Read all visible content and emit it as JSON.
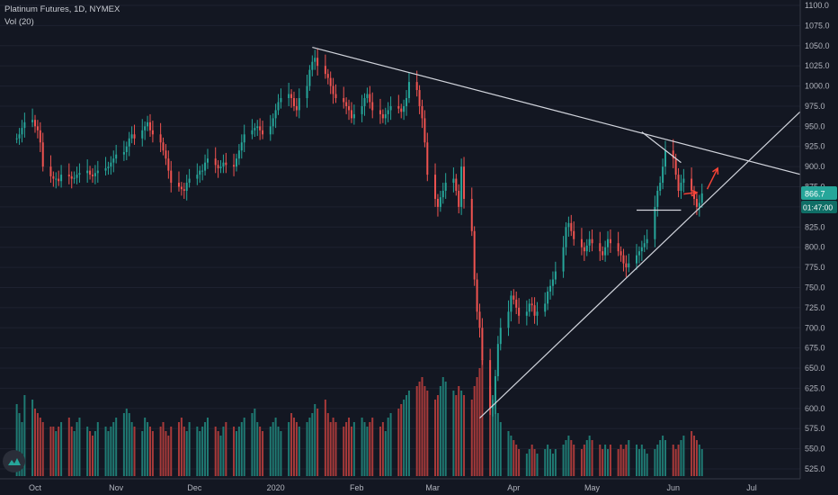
{
  "legend": {
    "symbol": "Platinum Futures, 1D, NYMEX",
    "volume": "Vol (20)"
  },
  "price_tag": {
    "value": "866.7",
    "countdown": "01:47:00"
  },
  "colors": {
    "background": "#131722",
    "up": "#26a69a",
    "down": "#ef5350",
    "up_volume": "#1f7a73",
    "down_volume": "#a83a3a",
    "trendline": "#d1d4dc",
    "arrow": "#f44336",
    "axis_text": "#b2b5be"
  },
  "icons": {
    "logo": "tradingview-logo-icon"
  },
  "chart_data": {
    "type": "candlestick",
    "title": "Platinum Futures, 1D, NYMEX",
    "y_ticks": [
      "525.0",
      "550.0",
      "575.0",
      "600.0",
      "625.0",
      "650.0",
      "675.0",
      "700.0",
      "725.0",
      "750.0",
      "775.0",
      "800.0",
      "825.0",
      "850.0",
      "875.0",
      "900.0",
      "925.0",
      "950.0",
      "975.0",
      "1000.0",
      "1025.0",
      "1050.0",
      "1075.0",
      "1100.0"
    ],
    "x_ticks": [
      "Oct",
      "Nov",
      "Dec",
      "2020",
      "Feb",
      "Mar",
      "Apr",
      "May",
      "Jun",
      "Jul"
    ],
    "ylim": [
      512,
      1100
    ],
    "start_date": "2019-09-24",
    "last_price": 866.7,
    "close_series": [
      935,
      940,
      948,
      955,
      958,
      950,
      945,
      930,
      900,
      888,
      885,
      885,
      882,
      890,
      888,
      885,
      886,
      890,
      892,
      895,
      890,
      888,
      892,
      895,
      898,
      900,
      905,
      910,
      915,
      918,
      925,
      935,
      940,
      935,
      945,
      950,
      955,
      945,
      940,
      930,
      920,
      910,
      895,
      880,
      875,
      872,
      870,
      880,
      885,
      890,
      895,
      895,
      905,
      910,
      902,
      898,
      900,
      905,
      902,
      900,
      910,
      920,
      930,
      940,
      945,
      948,
      950,
      945,
      940,
      950,
      960,
      970,
      980,
      985,
      990,
      985,
      975,
      970,
      985,
      1000,
      1020,
      1030,
      1035,
      1025,
      1015,
      1010,
      1000,
      990,
      985,
      980,
      975,
      970,
      960,
      965,
      975,
      985,
      990,
      980,
      970,
      965,
      960,
      965,
      970,
      975,
      972,
      968,
      975,
      985,
      1005,
      995,
      975,
      960,
      930,
      890,
      860,
      850,
      862,
      870,
      880,
      885,
      870,
      850,
      900,
      860,
      820,
      760,
      720,
      700,
      660,
      600,
      605,
      640,
      680,
      700,
      720,
      740,
      735,
      725,
      715,
      720,
      730,
      728,
      715,
      720,
      730,
      745,
      752,
      760,
      770,
      800,
      825,
      830,
      820,
      810,
      800,
      795,
      802,
      810,
      805,
      795,
      790,
      800,
      810,
      805,
      795,
      790,
      780,
      775,
      780,
      790,
      795,
      800,
      805,
      810,
      850,
      870,
      880,
      900,
      920,
      910,
      890,
      870,
      880,
      885,
      870,
      860,
      850,
      855,
      866.7
    ],
    "volume_series": [
      80,
      70,
      60,
      90,
      85,
      75,
      70,
      65,
      60,
      55,
      55,
      50,
      55,
      60,
      65,
      55,
      50,
      60,
      65,
      55,
      50,
      45,
      50,
      60,
      55,
      50,
      55,
      60,
      65,
      70,
      75,
      70,
      60,
      55,
      50,
      65,
      60,
      55,
      50,
      55,
      60,
      50,
      45,
      55,
      60,
      65,
      55,
      50,
      60,
      55,
      50,
      55,
      60,
      65,
      55,
      50,
      45,
      55,
      60,
      55,
      50,
      55,
      60,
      65,
      70,
      75,
      60,
      55,
      50,
      55,
      60,
      65,
      55,
      50,
      60,
      70,
      65,
      60,
      55,
      60,
      65,
      70,
      80,
      75,
      85,
      70,
      60,
      65,
      60,
      55,
      60,
      65,
      55,
      60,
      65,
      60,
      55,
      60,
      65,
      55,
      60,
      50,
      65,
      70,
      75,
      80,
      85,
      90,
      95,
      100,
      105,
      110,
      100,
      95,
      85,
      90,
      100,
      110,
      105,
      95,
      90,
      100,
      95,
      90,
      85,
      100,
      110,
      120,
      130,
      100,
      90,
      80,
      70,
      60,
      50,
      45,
      40,
      35,
      30,
      25,
      30,
      35,
      30,
      25,
      30,
      35,
      30,
      25,
      30,
      35,
      40,
      45,
      40,
      35,
      30,
      35,
      40,
      45,
      40,
      35,
      30,
      35,
      30,
      35,
      30,
      35,
      30,
      35,
      40,
      35,
      30,
      35,
      30,
      25,
      30,
      35,
      40,
      45,
      40,
      35,
      30,
      35,
      40,
      45,
      50,
      45,
      40,
      35,
      30,
      35
    ],
    "annotations": [
      {
        "type": "trendline",
        "from": [
          "2020-01-15",
          1048
        ],
        "to": [
          "2020-07-20",
          890
        ]
      },
      {
        "type": "trendline",
        "from": [
          "2020-03-19",
          588
        ],
        "to": [
          "2020-07-25",
          985
        ]
      },
      {
        "type": "trendline",
        "from": [
          "2020-05-20",
          943
        ],
        "to": [
          "2020-06-04",
          905
        ]
      },
      {
        "type": "hline",
        "from": [
          "2020-05-18",
          846
        ],
        "to": [
          "2020-06-04",
          846
        ]
      },
      {
        "type": "arrow",
        "points": [
          [
            "2020-06-05",
            866
          ],
          [
            "2020-06-10",
            868
          ]
        ]
      },
      {
        "type": "arrow",
        "points": [
          [
            "2020-06-14",
            872
          ],
          [
            "2020-06-18",
            898
          ]
        ]
      }
    ]
  }
}
